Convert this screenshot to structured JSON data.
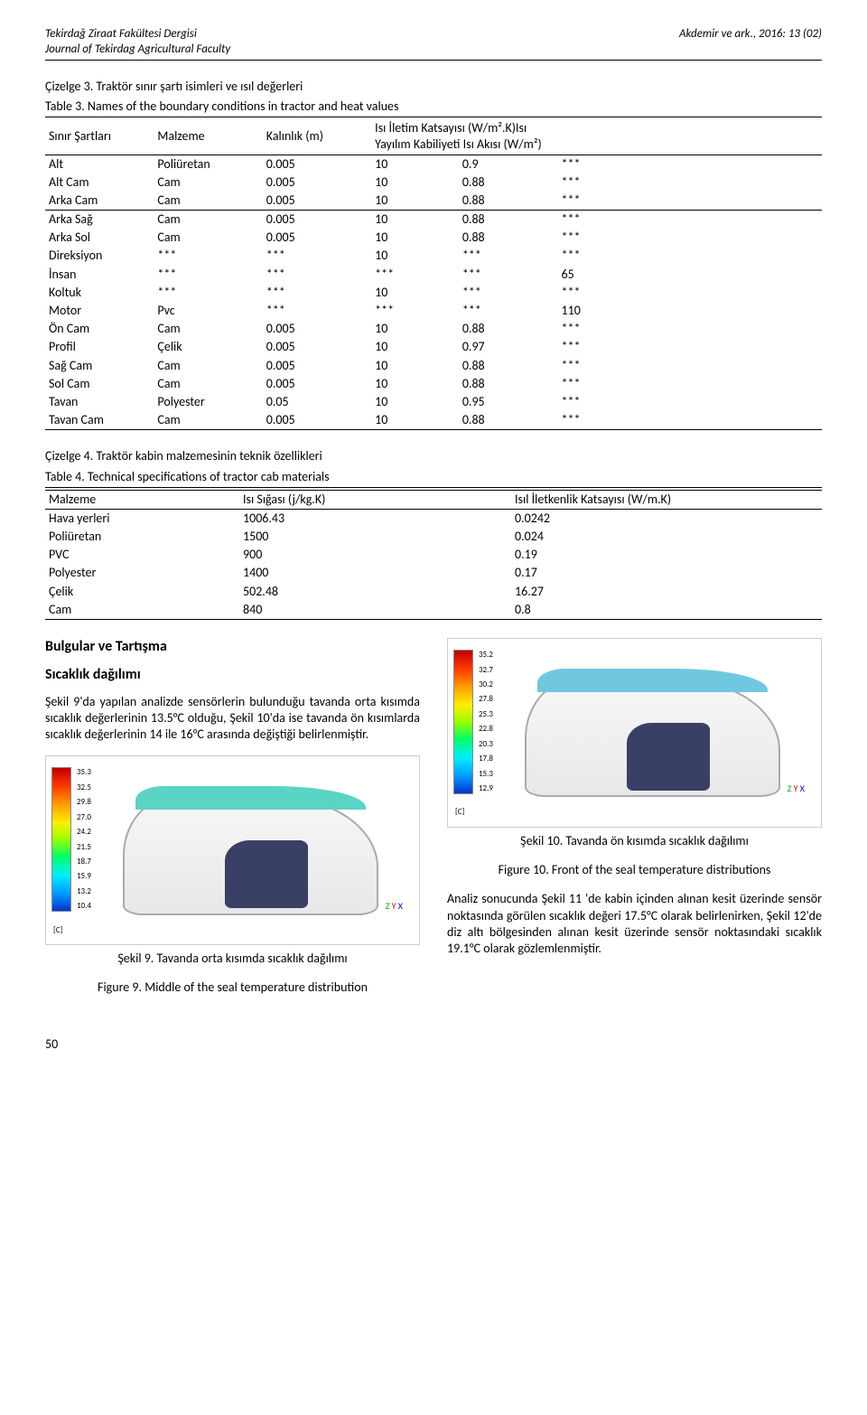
{
  "header": {
    "left_line1": "Tekirdağ Ziraat Fakültesi Dergisi",
    "left_line2": "Journal of Tekirdag Agricultural Faculty",
    "right": "Akdemir ve ark.,  2016:  13 (02)"
  },
  "table3": {
    "title_tr": "Çizelge 3. Traktör sınır şartı isimleri ve ısıl değerleri",
    "title_en": "Table 3.   Names of the boundary conditions in tractor and heat values",
    "columns": [
      "Sınır Şartları",
      "Malzeme",
      "Kalınlık (m)",
      "Isı İletim Katsayısı (W/m².K)",
      "Isı Yayılım Kabiliyeti Isı Akısı (W/m²)"
    ],
    "rows": [
      [
        "Alt",
        "Poliüretan",
        "0.005",
        "10",
        "0.9",
        "***"
      ],
      [
        "Alt Cam",
        "Cam",
        "0.005",
        "10",
        "0.88",
        "***"
      ],
      [
        "Arka Cam",
        "Cam",
        "0.005",
        "10",
        "0.88",
        "***"
      ],
      [
        "Arka Sağ",
        "Cam",
        "0.005",
        "10",
        "0.88",
        "***"
      ],
      [
        "Arka Sol",
        "Cam",
        "0.005",
        "10",
        "0.88",
        "***"
      ],
      [
        "Direksiyon",
        "***",
        "***",
        "10",
        "***",
        "***"
      ],
      [
        "İnsan",
        "***",
        "***",
        "***",
        "***",
        "65"
      ],
      [
        "Koltuk",
        "***",
        "***",
        "10",
        "***",
        "***"
      ],
      [
        "Motor",
        "Pvc",
        "***",
        "***",
        "***",
        "110"
      ],
      [
        "Ön Cam",
        "Cam",
        "0.005",
        "10",
        "0.88",
        "***"
      ],
      [
        "Profil",
        "Çelik",
        "0.005",
        "10",
        "0.97",
        "***"
      ],
      [
        "Sağ Cam",
        "Cam",
        "0.005",
        "10",
        "0.88",
        "***"
      ],
      [
        "Sol  Cam",
        "Cam",
        "0.005",
        "10",
        "0.88",
        "***"
      ],
      [
        "Tavan",
        "Polyester",
        "0.05",
        "10",
        "0.95",
        "***"
      ],
      [
        "Tavan Cam",
        "Cam",
        "0.005",
        "10",
        "0.88",
        "***"
      ]
    ]
  },
  "table4": {
    "title_tr": "Çizelge 4. Traktör kabin  malzemesinin teknik özellikleri",
    "title_en": "Table 4. Technical specifications of tractor cab materials",
    "columns": [
      "Malzeme",
      "Isı Sığası  (j/kg.K)",
      "Isıl İletkenlik Katsayısı (W/m.K)"
    ],
    "rows": [
      [
        "Hava yerleri",
        "1006.43",
        "0.0242"
      ],
      [
        "Poliüretan",
        "1500",
        "0.024"
      ],
      [
        "PVC",
        "900",
        "0.19"
      ],
      [
        "Polyester",
        "1400",
        "0.17"
      ],
      [
        "Çelik",
        "502.48",
        "16.27"
      ],
      [
        "Cam",
        "840",
        "0.8"
      ]
    ]
  },
  "body": {
    "results_heading": "Bulgular ve Tartışma",
    "temp_heading": "Sıcaklık dağılımı",
    "para1": "Şekil 9'da yapılan analizde sensörlerin bulunduğu tavanda orta kısımda sıcaklık değerlerinin 13.5°C olduğu, Şekil 10'da ise tavanda ön kısımlarda sıcaklık değerlerinin 14 ile 16°C arasında değiştiği belirlenmiştir.",
    "fig9_tr": "Şekil 9. Tavanda orta kısımda sıcaklık dağılımı",
    "fig9_en": "Figure 9. Middle of the seal temperature distribution",
    "fig10_tr": "Şekil 10. Tavanda ön kısımda sıcaklık dağılımı",
    "fig10_en": "Figure 10. Front of the seal temperature distributions",
    "para2": "Analiz sonucunda Şekil 11 'de kabin içinden alınan kesit üzerinde sensör noktasında görülen sıcaklık değeri 17.5°C olarak belirlenirken, Şekil 12'de diz altı bölgesinden alınan kesit üzerinde sensör noktasındaki sıcaklık 19.1°C olarak gözlemlenmiştir."
  },
  "fig9": {
    "ticks": [
      "35.3",
      "32.5",
      "29.8",
      "27.0",
      "24.2",
      "21.5",
      "18.7",
      "15.9",
      "13.2",
      "10.4"
    ],
    "unit": "[C]",
    "roof_color": "#5ad4c4"
  },
  "fig10": {
    "ticks": [
      "35.2",
      "32.7",
      "30.2",
      "27.8",
      "25.3",
      "22.8",
      "20.3",
      "17.8",
      "15.3",
      "12.9"
    ],
    "unit": "[C]",
    "roof_color": "#6fc8e0"
  },
  "page_num": "50"
}
